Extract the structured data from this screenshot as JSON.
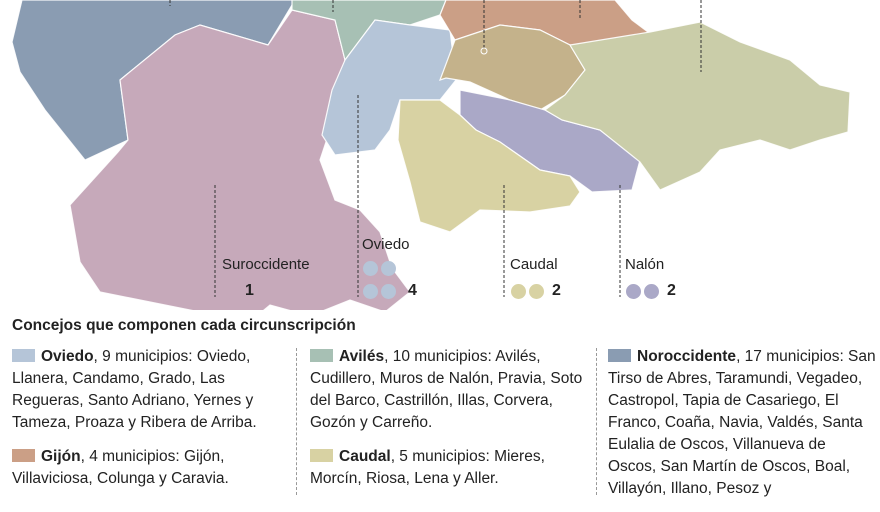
{
  "colors": {
    "noroccidente": "#8a9cb2",
    "suroccidente": "#c6a9ba",
    "aviles": "#a7c0b4",
    "oviedo": "#b5c5d8",
    "gijon": "#cb9f86",
    "central_tan": "#c4b28b",
    "nalon": "#aaa8c7",
    "caudal": "#d8d2a3",
    "oriente": "#cacda9"
  },
  "map_labels": [
    {
      "name": "Suroccidente",
      "seats": "1",
      "color": "#c6a9ba"
    },
    {
      "name": "Oviedo",
      "seats": "4",
      "color": "#b5c5d8"
    },
    {
      "name": "Caudal",
      "seats": "2",
      "color": "#d8d2a3"
    },
    {
      "name": "Nalón",
      "seats": "2",
      "color": "#aaa8c7"
    }
  ],
  "legend": {
    "heading": "Concejos que componen cada circunscripción",
    "entries": [
      {
        "name": "Oviedo",
        "text": ", 9 municipios: Oviedo, Llanera, Candamo, Grado, Las Regueras, Santo Adriano, Yernes y Tameza, Proaza y Ribera de Arriba.",
        "color": "#b5c5d8"
      },
      {
        "name": "Gijón",
        "text": ", 4 municipios: Gijón, Villaviciosa, Colunga y Caravia.",
        "color": "#cb9f86"
      },
      {
        "name": "Avilés",
        "text": ", 10 municipios: Avilés, Cudillero, Muros de Nalón, Pravia, Soto del Barco, Castrillón, Illas, Corvera, Gozón y Carreño.",
        "color": "#a7c0b4"
      },
      {
        "name": "Caudal",
        "text": ", 5 municipios: Mieres, Morcín, Riosa, Lena y Aller.",
        "color": "#d8d2a3"
      },
      {
        "name": "Noroccidente",
        "text": ", 17 municipios: San Tirso de Abres, Taramundi, Vegadeo, Castropol, Tapia de Casariego, El Franco, Coaña, Navia, Valdés, Santa Eulalia de Oscos, Villanueva de Oscos, San Martín de Oscos, Boal, Villayón, Illano, Pesoz y",
        "color": "#8a9cb2"
      }
    ]
  }
}
